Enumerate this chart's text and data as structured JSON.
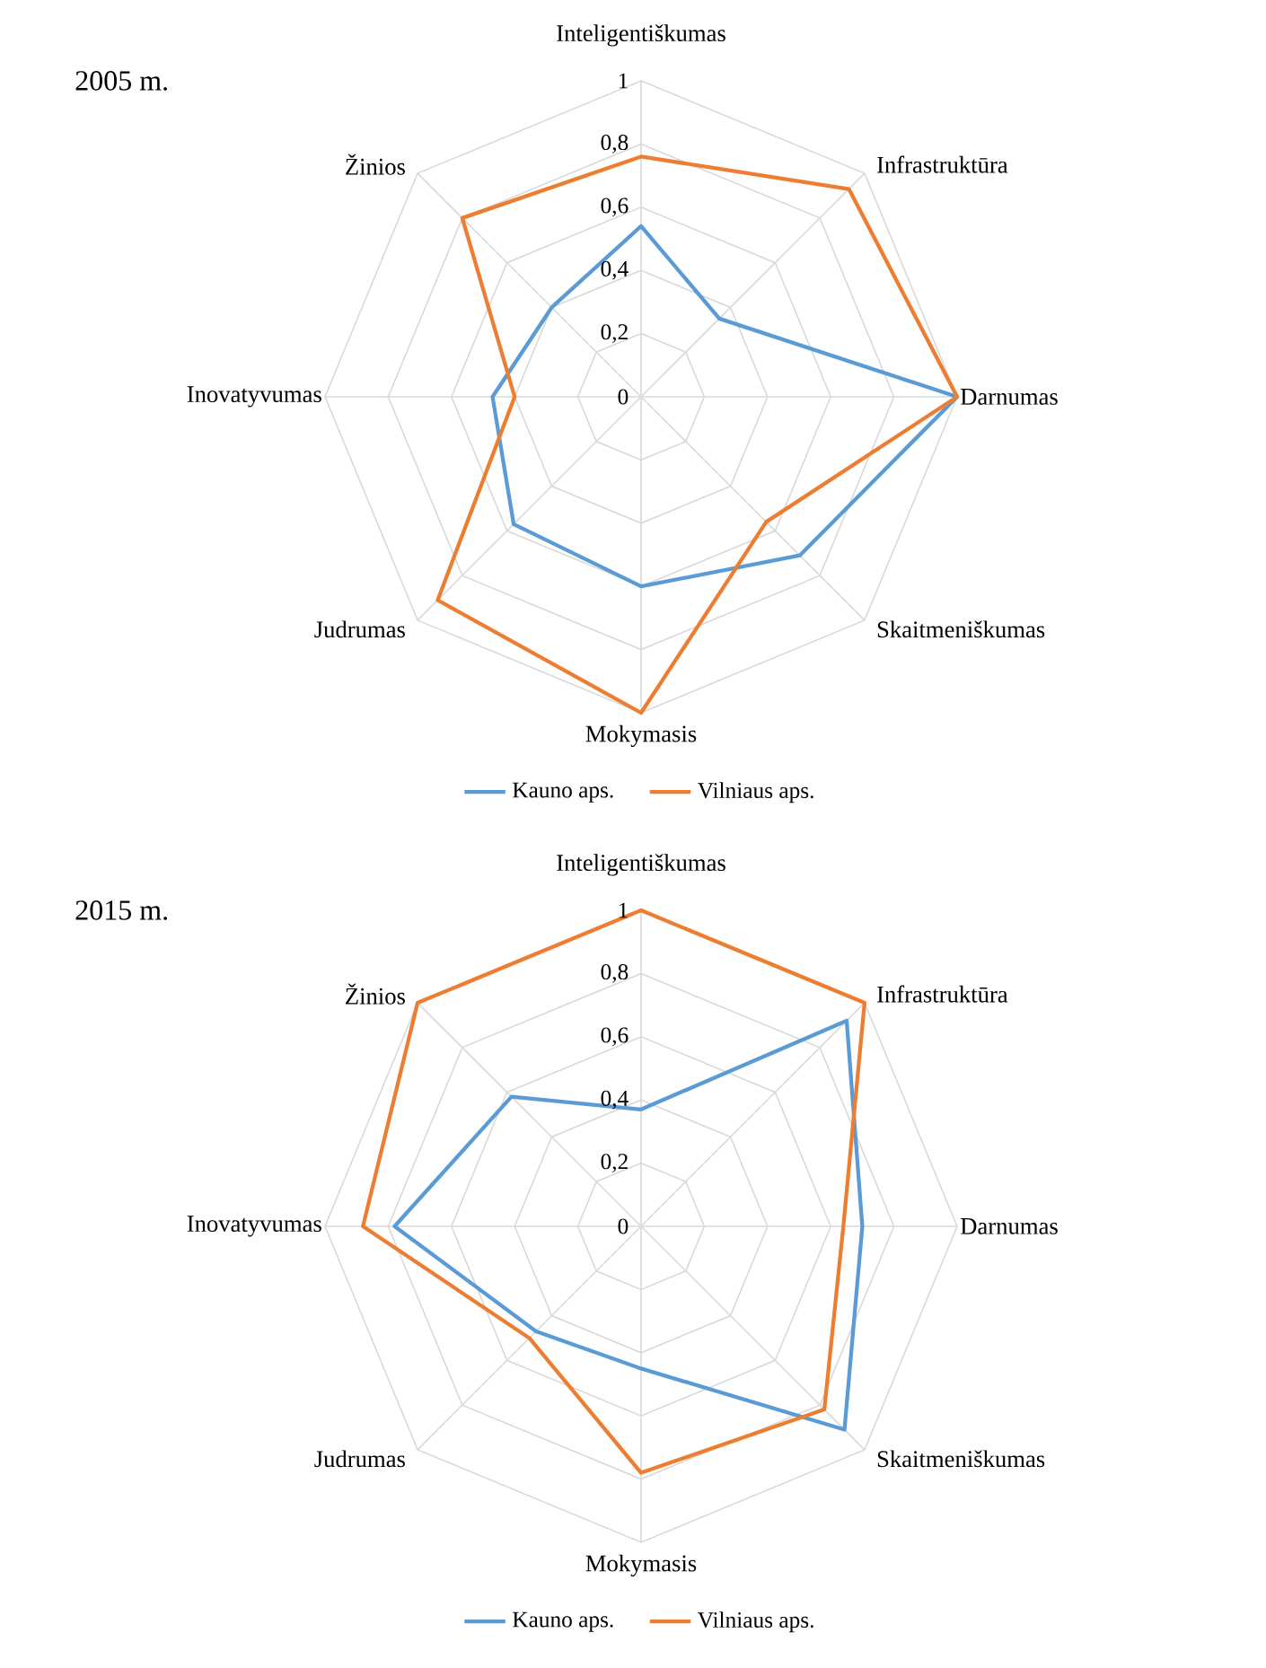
{
  "chart_data": [
    {
      "type": "radar",
      "title": "2005 m.",
      "categories": [
        "Inteligentiškumas",
        "Infrastruktūra",
        "Darnumas",
        "Skaitmeniškumas",
        "Mokymasis",
        "Judrumas",
        "Inovatyvumas",
        "Žinios"
      ],
      "series": [
        {
          "name": "Kauno aps.",
          "color": "#5b9bd5",
          "values": [
            0.54,
            0.35,
            1.0,
            0.71,
            0.6,
            0.57,
            0.47,
            0.4
          ]
        },
        {
          "name": "Vilniaus aps.",
          "color": "#ed7d31",
          "values": [
            0.76,
            0.93,
            1.0,
            0.56,
            1.0,
            0.91,
            0.4,
            0.8
          ]
        }
      ],
      "ylim": [
        0,
        1
      ],
      "yticks": [
        0,
        {
          "value": 0.2,
          "label": "0,2"
        },
        {
          "value": 0.4,
          "label": "0,4"
        },
        {
          "value": 0.6,
          "label": "0,6"
        },
        {
          "value": 0.8,
          "label": "0,8"
        },
        1
      ],
      "grid": true,
      "legend": "bottom"
    },
    {
      "type": "radar",
      "title": "2015 m.",
      "categories": [
        "Inteligentiškumas",
        "Infrastruktūra",
        "Darnumas",
        "Skaitmeniškumas",
        "Mokymasis",
        "Judrumas",
        "Inovatyvumas",
        "Žinios"
      ],
      "series": [
        {
          "name": "Kauno aps.",
          "color": "#5b9bd5",
          "values": [
            0.37,
            0.92,
            0.7,
            0.91,
            0.45,
            0.47,
            0.78,
            0.58
          ]
        },
        {
          "name": "Vilniaus aps.",
          "color": "#ed7d31",
          "values": [
            1.0,
            1.0,
            0.64,
            0.82,
            0.78,
            0.5,
            0.88,
            1.0
          ]
        }
      ],
      "ylim": [
        0,
        1
      ],
      "yticks": [
        0,
        {
          "value": 0.2,
          "label": "0,2"
        },
        {
          "value": 0.4,
          "label": "0,4"
        },
        {
          "value": 0.6,
          "label": "0,6"
        },
        {
          "value": 0.8,
          "label": "0,8"
        },
        1
      ],
      "grid": true,
      "legend": "bottom"
    }
  ]
}
